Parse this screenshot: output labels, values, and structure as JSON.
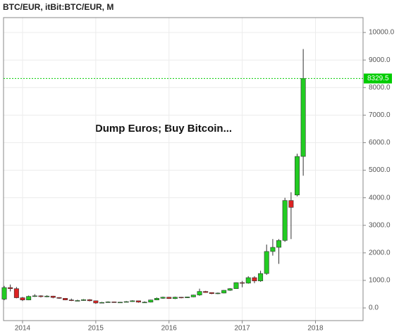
{
  "chart_data": {
    "type": "candlestick",
    "title": "BTC/EUR, itBit:BTC/EUR, M",
    "annotation": "Dump Euros; Buy Bitcoin...",
    "x": [
      2013.75,
      2013.833,
      2013.917,
      2014,
      2014.083,
      2014.167,
      2014.25,
      2014.333,
      2014.417,
      2014.5,
      2014.583,
      2014.667,
      2014.75,
      2014.833,
      2014.917,
      2015,
      2015.083,
      2015.167,
      2015.25,
      2015.333,
      2015.417,
      2015.5,
      2015.583,
      2015.667,
      2015.75,
      2015.833,
      2015.917,
      2016,
      2016.083,
      2016.167,
      2016.25,
      2016.333,
      2016.417,
      2016.5,
      2016.583,
      2016.667,
      2016.75,
      2016.833,
      2016.917,
      2017,
      2017.083,
      2017.167,
      2017.25,
      2017.333,
      2017.417,
      2017.5,
      2017.583,
      2017.667,
      2017.75,
      2017.833
    ],
    "open": [
      320,
      740,
      700,
      370,
      290,
      420,
      440,
      410,
      430,
      380,
      350,
      290,
      270,
      270,
      300,
      260,
      180,
      200,
      220,
      210,
      210,
      230,
      260,
      210,
      210,
      290,
      350,
      390,
      340,
      390,
      370,
      400,
      470,
      600,
      560,
      520,
      540,
      640,
      700,
      920,
      900,
      1100,
      980,
      1250,
      2050,
      2200,
      2450,
      3900,
      4100,
      5500
    ],
    "high": [
      800,
      850,
      760,
      400,
      450,
      500,
      460,
      460,
      440,
      390,
      360,
      340,
      300,
      320,
      320,
      270,
      220,
      240,
      230,
      220,
      250,
      280,
      260,
      240,
      300,
      380,
      410,
      400,
      410,
      400,
      410,
      480,
      700,
      620,
      560,
      560,
      650,
      720,
      930,
      980,
      1150,
      1150,
      1350,
      2300,
      2500,
      2500,
      4000,
      4200,
      5600,
      9400
    ],
    "low": [
      280,
      600,
      350,
      250,
      280,
      400,
      380,
      390,
      350,
      330,
      280,
      250,
      250,
      260,
      240,
      150,
      180,
      190,
      200,
      200,
      210,
      220,
      190,
      190,
      200,
      280,
      330,
      330,
      320,
      350,
      360,
      390,
      440,
      550,
      500,
      500,
      530,
      620,
      700,
      750,
      880,
      900,
      950,
      1200,
      1900,
      1600,
      2400,
      2500,
      4050,
      4800
    ],
    "close": [
      740,
      700,
      370,
      290,
      420,
      440,
      410,
      430,
      380,
      350,
      290,
      270,
      270,
      300,
      260,
      180,
      200,
      220,
      210,
      210,
      230,
      260,
      210,
      210,
      290,
      350,
      390,
      340,
      390,
      370,
      400,
      470,
      600,
      560,
      520,
      540,
      640,
      700,
      920,
      900,
      1100,
      980,
      1250,
      2050,
      2200,
      2450,
      3900,
      3650,
      5500,
      8329.5
    ],
    "up_color": "#22cc22",
    "down_color": "#dd2222",
    "last_price": 8329.5,
    "last_price_color": "#00cc00",
    "xlim": [
      2013.74,
      2018.65
    ],
    "xticks": [
      2014,
      2015,
      2016,
      2017,
      2018
    ],
    "ylim": [
      -460,
      10540
    ],
    "yticks": [
      {
        "value": 0,
        "label": "0.0"
      },
      {
        "value": 1000,
        "label": "1000.0"
      },
      {
        "value": 2000,
        "label": "2000.0"
      },
      {
        "value": 3000,
        "label": "3000.0"
      },
      {
        "value": 4000,
        "label": "4000.0"
      },
      {
        "value": 5000,
        "label": "5000.0"
      },
      {
        "value": 6000,
        "label": "6000.0"
      },
      {
        "value": 7000,
        "label": "7000.0"
      },
      {
        "value": 8000,
        "label": "8000.0"
      },
      {
        "value": 9000,
        "label": "9000.0"
      },
      {
        "value": 10000,
        "label": "10000.0"
      }
    ],
    "grid": true
  }
}
